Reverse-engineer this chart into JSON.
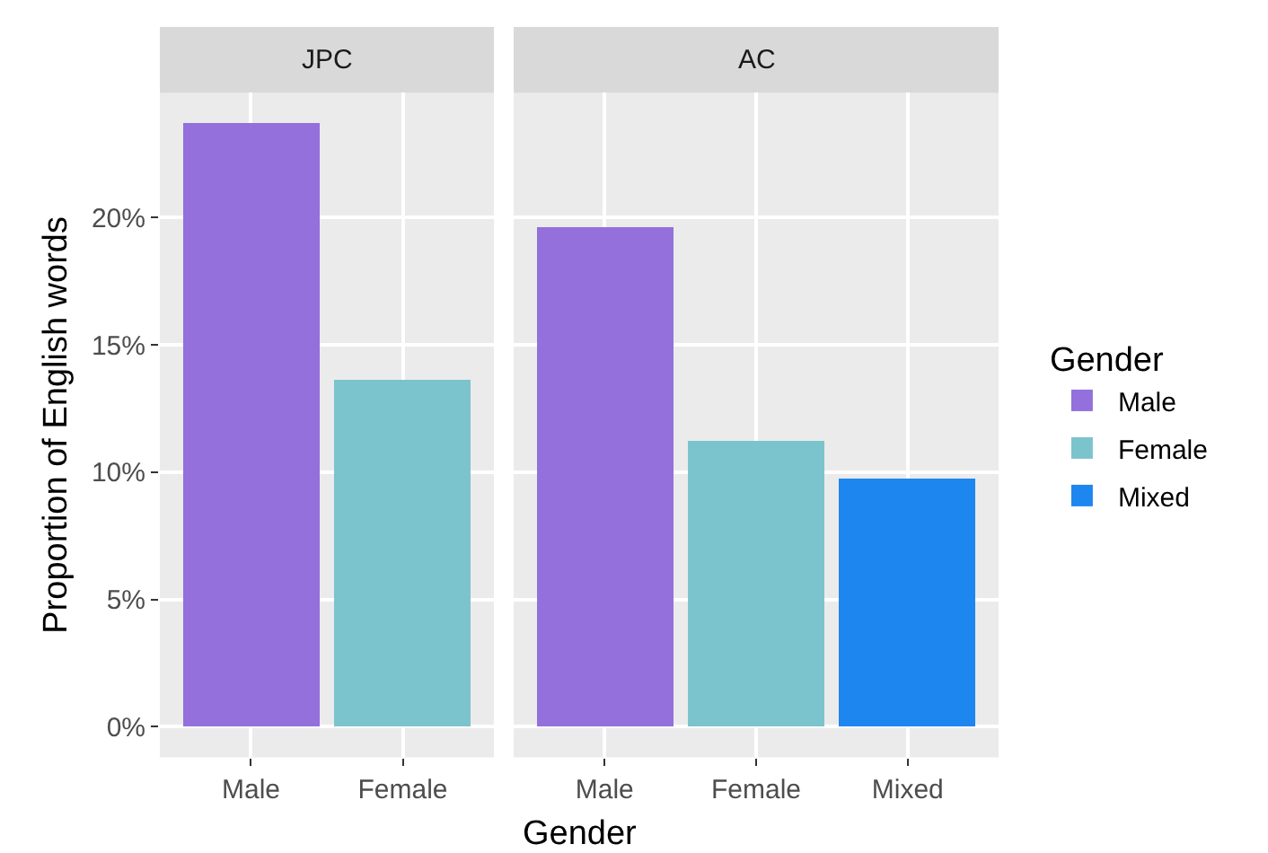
{
  "chart_data": [
    {
      "type": "bar",
      "title": "JPC",
      "ylabel": "Proportion of English words",
      "xlabel": "Gender",
      "categories": [
        "Male",
        "Female"
      ],
      "values": [
        23.7,
        13.6
      ],
      "colors": [
        "#9370db",
        "#7bc4cd"
      ],
      "ylim": [
        -1.2,
        24.9
      ],
      "yticks": [
        {
          "value": 0,
          "label": "0%"
        },
        {
          "value": 5,
          "label": "5%"
        },
        {
          "value": 10,
          "label": "10%"
        },
        {
          "value": 15,
          "label": "15%"
        },
        {
          "value": 20,
          "label": "20%"
        }
      ],
      "grid": true
    },
    {
      "type": "bar",
      "title": "AC",
      "legend_title": "Gender",
      "categories": [
        "Male",
        "Female",
        "Mixed"
      ],
      "series": [
        {
          "name": "Male",
          "color": "#9370db",
          "values": [
            19.6,
            null,
            null
          ]
        },
        {
          "name": "Female",
          "color": "#7bc4cd",
          "values": [
            null,
            11.2,
            null
          ]
        },
        {
          "name": "Mixed",
          "color": "#1e86ef",
          "values": [
            null,
            null,
            9.7
          ]
        }
      ],
      "ylim": [
        -1.2,
        24.9
      ],
      "yticks": [
        {
          "value": 0,
          "label": null
        },
        {
          "value": 5,
          "label": null
        },
        {
          "value": 10,
          "label": null
        },
        {
          "value": 15,
          "label": null
        },
        {
          "value": 20,
          "label": null
        }
      ],
      "grid": true,
      "legend": "right",
      "tick_labels": "x"
    }
  ]
}
